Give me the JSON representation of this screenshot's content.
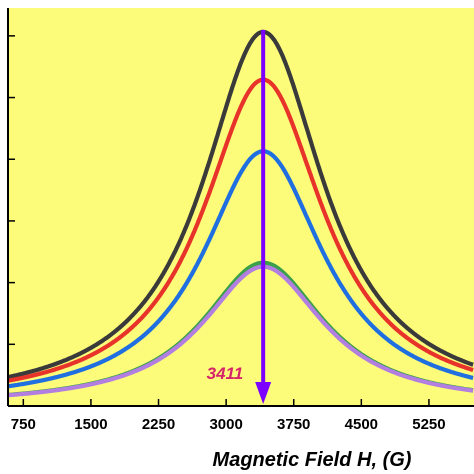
{
  "chart_data": {
    "type": "line",
    "title": "",
    "xlabel": "Magnetic Field H, (G)",
    "ylabel": "",
    "xlim": [
      580,
      5750
    ],
    "ylim": [
      0,
      1.0
    ],
    "xticks": [
      750,
      1500,
      2250,
      3000,
      3750,
      4500,
      5250
    ],
    "xtick_labels": [
      "750",
      "1500",
      "2250",
      "3000",
      "3750",
      "4500",
      "5250"
    ],
    "ytick_values": [
      0.0,
      0.155,
      0.31,
      0.465,
      0.62,
      0.775,
      0.93
    ],
    "ytick_labels": [],
    "grid": false,
    "legend": "none",
    "background_color": "#fdfc7a",
    "line_shape": "lorentzian",
    "center": 3411,
    "halfwidth": 820,
    "series": [
      {
        "color": "#3a3a3a",
        "peak": 0.94
      },
      {
        "color": "#e8332b",
        "peak": 0.82
      },
      {
        "color": "#1f6fe0",
        "peak": 0.64
      },
      {
        "color": "#3aa04a",
        "peak": 0.36
      },
      {
        "color": "#b27ee0",
        "peak": 0.35
      }
    ],
    "annotations": [
      {
        "text": "3411",
        "x": 3411,
        "color": "#d6246a",
        "arrow_color": "#7b00ff"
      }
    ]
  }
}
